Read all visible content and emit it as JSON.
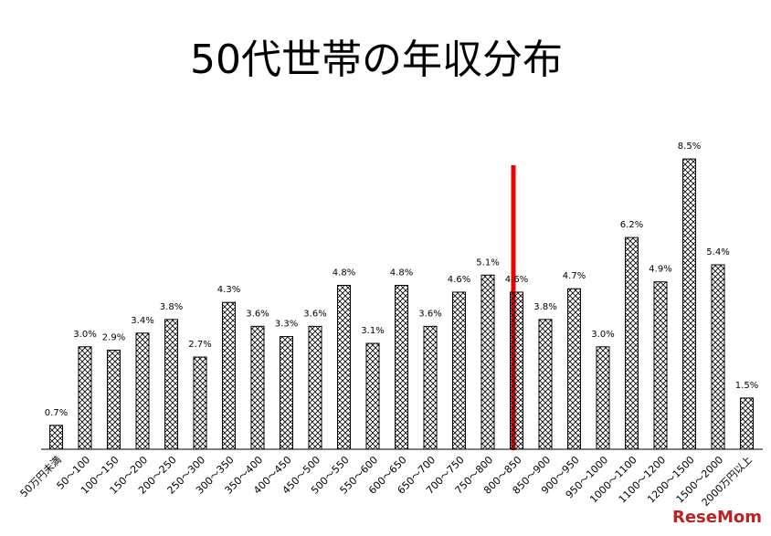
{
  "chart_data": {
    "type": "bar",
    "title": "50代世帯の年収分布",
    "categories": [
      "50万円未満",
      "50～100",
      "100～150",
      "150～200",
      "200～250",
      "250～300",
      "300～350",
      "350～400",
      "400～450",
      "450～500",
      "500～550",
      "550～600",
      "600～650",
      "650～700",
      "700～750",
      "750～800",
      "800～850",
      "850～900",
      "900～950",
      "950～1000",
      "1000～1100",
      "1100～1200",
      "1200～1500",
      "1500～2000",
      "2000万円以上"
    ],
    "values": [
      0.7,
      3.0,
      2.9,
      3.4,
      3.8,
      2.7,
      4.3,
      3.6,
      3.3,
      3.6,
      4.8,
      3.1,
      4.8,
      3.6,
      4.6,
      5.1,
      4.6,
      3.8,
      4.7,
      3.0,
      6.2,
      4.9,
      8.5,
      5.4,
      1.5
    ],
    "value_labels": [
      "0.7%",
      "3.0%",
      "2.9%",
      "3.4%",
      "3.8%",
      "2.7%",
      "4.3%",
      "3.6%",
      "3.3%",
      "3.6%",
      "4.8%",
      "3.1%",
      "4.8%",
      "3.6%",
      "4.6%",
      "5.1%",
      "4.6%",
      "3.8%",
      "4.7%",
      "3.0%",
      "6.2%",
      "4.9%",
      "8.5%",
      "5.4%",
      "1.5%"
    ],
    "color": "#000000",
    "watermark": "ReseMom"
  }
}
